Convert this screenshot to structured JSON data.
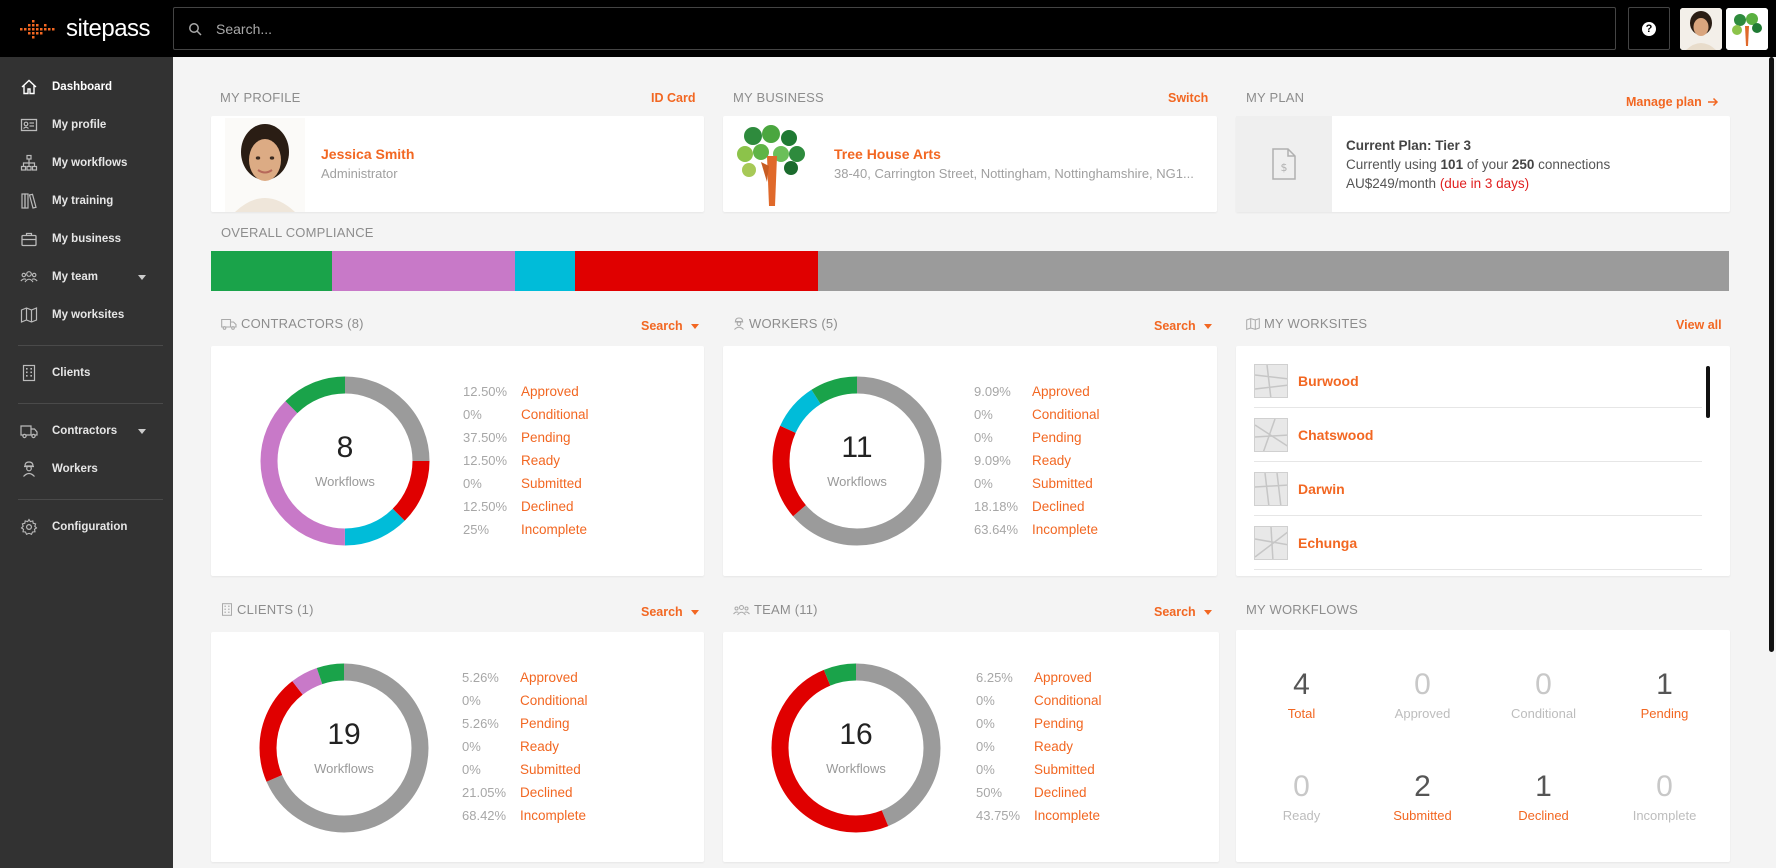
{
  "app": {
    "logo_text": "sitepass",
    "brand_color": "#f26722"
  },
  "search": {
    "placeholder": "Search..."
  },
  "topbar": {
    "help_icon": "question-icon"
  },
  "sidebar": {
    "items": [
      {
        "label": "Dashboard",
        "icon": "home-icon",
        "active": true
      },
      {
        "label": "My profile",
        "icon": "id-card-icon"
      },
      {
        "label": "My workflows",
        "icon": "sitemap-icon"
      },
      {
        "label": "My training",
        "icon": "books-icon"
      },
      {
        "label": "My business",
        "icon": "briefcase-icon"
      },
      {
        "label": "My team",
        "icon": "team-icon",
        "expandable": true
      },
      {
        "label": "My worksites",
        "icon": "map-icon"
      },
      {
        "label": "Clients",
        "icon": "building-icon"
      },
      {
        "label": "Contractors",
        "icon": "truck-icon",
        "expandable": true
      },
      {
        "label": "Workers",
        "icon": "worker-icon"
      },
      {
        "label": "Configuration",
        "icon": "gear-icon"
      }
    ]
  },
  "profile": {
    "section_title": "MY PROFILE",
    "link": "ID Card",
    "name": "Jessica Smith",
    "role": "Administrator"
  },
  "business": {
    "section_title": "MY BUSINESS",
    "link": "Switch",
    "name": "Tree House Arts",
    "address": "38-40, Carrington Street, Nottingham, Nottinghamshire, NG1..."
  },
  "plan": {
    "section_title": "MY PLAN",
    "link": "Manage plan",
    "line1_prefix": "Current Plan: Tier 3",
    "line2_a": "Currently using ",
    "line2_used": "101",
    "line2_b": " of your ",
    "line2_total": "250",
    "line2_c": " connections",
    "line3_price": "AU$249/month ",
    "line3_due": "(due in 3 days)"
  },
  "compliance": {
    "section_title": "OVERALL COMPLIANCE",
    "segments": [
      {
        "name": "approved",
        "fraction": 0.08,
        "color": "#1aa34a"
      },
      {
        "name": "pending",
        "fraction": 0.12,
        "color": "#c879c8"
      },
      {
        "name": "ready",
        "fraction": 0.04,
        "color": "#00bcd9"
      },
      {
        "name": "declined",
        "fraction": 0.16,
        "color": "#e00000"
      },
      {
        "name": "incomplete",
        "fraction": 0.6,
        "color": "#9b9b9b"
      }
    ]
  },
  "legend_labels": [
    "Approved",
    "Conditional",
    "Pending",
    "Ready",
    "Submitted",
    "Declined",
    "Incomplete"
  ],
  "status_colors": {
    "Approved": "#1aa34a",
    "Conditional": "#f4b400",
    "Pending": "#c879c8",
    "Ready": "#00bcd9",
    "Submitted": "#3f51b5",
    "Declined": "#e00000",
    "Incomplete": "#9b9b9b"
  },
  "contractors": {
    "section_title": "CONTRACTORS (8)",
    "link": "Search",
    "count": "8",
    "center_label": "Workflows",
    "percents": [
      "12.50%",
      "0%",
      "37.50%",
      "12.50%",
      "0%",
      "12.50%",
      "25%"
    ],
    "values": [
      12.5,
      0,
      37.5,
      12.5,
      0,
      12.5,
      25
    ]
  },
  "workers": {
    "section_title": "WORKERS (5)",
    "link": "Search",
    "count": "11",
    "center_label": "Workflows",
    "percents": [
      "9.09%",
      "0%",
      "0%",
      "9.09%",
      "0%",
      "18.18%",
      "63.64%"
    ],
    "values": [
      9.09,
      0,
      0,
      9.09,
      0,
      18.18,
      63.64
    ]
  },
  "clients": {
    "section_title": "CLIENTS (1)",
    "link": "Search",
    "count": "19",
    "center_label": "Workflows",
    "percents": [
      "5.26%",
      "0%",
      "5.26%",
      "0%",
      "0%",
      "21.05%",
      "68.42%"
    ],
    "values": [
      5.26,
      0,
      5.26,
      0,
      0,
      21.05,
      68.42
    ]
  },
  "team": {
    "section_title": "TEAM (11)",
    "link": "Search",
    "count": "16",
    "center_label": "Workflows",
    "percents": [
      "6.25%",
      "0%",
      "0%",
      "0%",
      "0%",
      "50%",
      "43.75%"
    ],
    "values": [
      6.25,
      0,
      0,
      0,
      0,
      50,
      43.75
    ]
  },
  "worksites": {
    "section_title": "MY WORKSITES",
    "link": "View all",
    "items": [
      "Burwood",
      "Chatswood",
      "Darwin",
      "Echunga"
    ]
  },
  "workflows": {
    "section_title": "MY WORKFLOWS",
    "cells": [
      {
        "value": "4",
        "label": "Total",
        "muted": false
      },
      {
        "value": "0",
        "label": "Approved",
        "muted": true
      },
      {
        "value": "0",
        "label": "Conditional",
        "muted": true
      },
      {
        "value": "1",
        "label": "Pending",
        "muted": false
      },
      {
        "value": "0",
        "label": "Ready",
        "muted": true
      },
      {
        "value": "2",
        "label": "Submitted",
        "muted": false
      },
      {
        "value": "1",
        "label": "Declined",
        "muted": false
      },
      {
        "value": "0",
        "label": "Incomplete",
        "muted": true
      }
    ]
  }
}
